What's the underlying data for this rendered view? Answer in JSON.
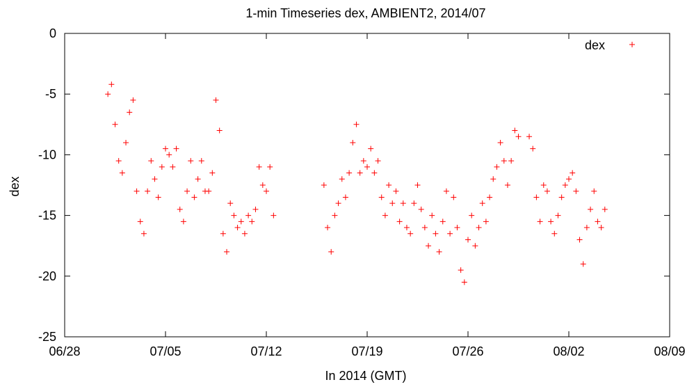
{
  "chart_data": {
    "type": "scatter",
    "title": "1-min Timeseries dex, AMBIENT2, 2014/07",
    "xlabel": "In 2014 (GMT)",
    "ylabel": "dex",
    "xlim": [
      "2014-06-28",
      "2014-08-09"
    ],
    "ylim": [
      -25,
      0
    ],
    "x_ticks": [
      "06/28",
      "07/05",
      "07/12",
      "07/19",
      "07/26",
      "08/02",
      "08/09"
    ],
    "y_ticks": [
      "0",
      "-5",
      "-10",
      "-15",
      "-20",
      "-25"
    ],
    "grid": false,
    "legend": {
      "position": "top-right",
      "entries": [
        "dex"
      ]
    },
    "series": [
      {
        "name": "dex",
        "color": "#ff0000",
        "marker": "plus",
        "points": [
          [
            "2014-07-01 00:00",
            -5.0
          ],
          [
            "2014-07-01 06:00",
            -4.2
          ],
          [
            "2014-07-01 12:00",
            -7.5
          ],
          [
            "2014-07-01 18:00",
            -10.5
          ],
          [
            "2014-07-02 00:00",
            -11.5
          ],
          [
            "2014-07-02 06:00",
            -9.0
          ],
          [
            "2014-07-02 12:00",
            -6.5
          ],
          [
            "2014-07-02 18:00",
            -5.5
          ],
          [
            "2014-07-03 00:00",
            -13.0
          ],
          [
            "2014-07-03 06:00",
            -15.5
          ],
          [
            "2014-07-03 12:00",
            -16.5
          ],
          [
            "2014-07-03 18:00",
            -13.0
          ],
          [
            "2014-07-04 00:00",
            -10.5
          ],
          [
            "2014-07-04 06:00",
            -12.0
          ],
          [
            "2014-07-04 12:00",
            -13.5
          ],
          [
            "2014-07-04 18:00",
            -11.0
          ],
          [
            "2014-07-05 00:00",
            -9.5
          ],
          [
            "2014-07-05 06:00",
            -10.0
          ],
          [
            "2014-07-05 12:00",
            -11.0
          ],
          [
            "2014-07-05 18:00",
            -9.5
          ],
          [
            "2014-07-06 00:00",
            -14.5
          ],
          [
            "2014-07-06 06:00",
            -15.5
          ],
          [
            "2014-07-06 12:00",
            -13.0
          ],
          [
            "2014-07-06 18:00",
            -10.5
          ],
          [
            "2014-07-07 00:00",
            -13.5
          ],
          [
            "2014-07-07 06:00",
            -12.0
          ],
          [
            "2014-07-07 12:00",
            -10.5
          ],
          [
            "2014-07-07 18:00",
            -13.0
          ],
          [
            "2014-07-08 00:00",
            -13.0
          ],
          [
            "2014-07-08 06:00",
            -11.5
          ],
          [
            "2014-07-08 12:00",
            -5.5
          ],
          [
            "2014-07-08 18:00",
            -8.0
          ],
          [
            "2014-07-09 00:00",
            -16.5
          ],
          [
            "2014-07-09 06:00",
            -18.0
          ],
          [
            "2014-07-09 12:00",
            -14.0
          ],
          [
            "2014-07-09 18:00",
            -15.0
          ],
          [
            "2014-07-10 00:00",
            -16.0
          ],
          [
            "2014-07-10 06:00",
            -15.5
          ],
          [
            "2014-07-10 12:00",
            -16.5
          ],
          [
            "2014-07-10 18:00",
            -15.0
          ],
          [
            "2014-07-11 00:00",
            -15.5
          ],
          [
            "2014-07-11 06:00",
            -14.5
          ],
          [
            "2014-07-11 12:00",
            -11.0
          ],
          [
            "2014-07-11 18:00",
            -12.5
          ],
          [
            "2014-07-12 00:00",
            -13.0
          ],
          [
            "2014-07-12 06:00",
            -11.0
          ],
          [
            "2014-07-12 12:00",
            -15.0
          ],
          [
            "2014-07-16 00:00",
            -12.5
          ],
          [
            "2014-07-16 06:00",
            -16.0
          ],
          [
            "2014-07-16 12:00",
            -18.0
          ],
          [
            "2014-07-16 18:00",
            -15.0
          ],
          [
            "2014-07-17 00:00",
            -14.0
          ],
          [
            "2014-07-17 06:00",
            -12.0
          ],
          [
            "2014-07-17 12:00",
            -13.5
          ],
          [
            "2014-07-17 18:00",
            -11.5
          ],
          [
            "2014-07-18 00:00",
            -9.0
          ],
          [
            "2014-07-18 06:00",
            -7.5
          ],
          [
            "2014-07-18 12:00",
            -11.5
          ],
          [
            "2014-07-18 18:00",
            -10.5
          ],
          [
            "2014-07-19 00:00",
            -11.0
          ],
          [
            "2014-07-19 06:00",
            -9.5
          ],
          [
            "2014-07-19 12:00",
            -11.5
          ],
          [
            "2014-07-19 18:00",
            -10.5
          ],
          [
            "2014-07-20 00:00",
            -13.5
          ],
          [
            "2014-07-20 06:00",
            -15.0
          ],
          [
            "2014-07-20 12:00",
            -12.5
          ],
          [
            "2014-07-20 18:00",
            -14.0
          ],
          [
            "2014-07-21 00:00",
            -13.0
          ],
          [
            "2014-07-21 06:00",
            -15.5
          ],
          [
            "2014-07-21 12:00",
            -14.0
          ],
          [
            "2014-07-21 18:00",
            -16.0
          ],
          [
            "2014-07-22 00:00",
            -16.5
          ],
          [
            "2014-07-22 06:00",
            -14.0
          ],
          [
            "2014-07-22 12:00",
            -12.5
          ],
          [
            "2014-07-22 18:00",
            -14.5
          ],
          [
            "2014-07-23 00:00",
            -16.0
          ],
          [
            "2014-07-23 06:00",
            -17.5
          ],
          [
            "2014-07-23 12:00",
            -15.0
          ],
          [
            "2014-07-23 18:00",
            -16.5
          ],
          [
            "2014-07-24 00:00",
            -18.0
          ],
          [
            "2014-07-24 06:00",
            -15.5
          ],
          [
            "2014-07-24 12:00",
            -13.0
          ],
          [
            "2014-07-24 18:00",
            -16.5
          ],
          [
            "2014-07-25 00:00",
            -13.5
          ],
          [
            "2014-07-25 06:00",
            -16.0
          ],
          [
            "2014-07-25 12:00",
            -19.5
          ],
          [
            "2014-07-25 18:00",
            -20.5
          ],
          [
            "2014-07-26 00:00",
            -17.0
          ],
          [
            "2014-07-26 06:00",
            -15.0
          ],
          [
            "2014-07-26 12:00",
            -17.5
          ],
          [
            "2014-07-26 18:00",
            -16.0
          ],
          [
            "2014-07-27 00:00",
            -14.0
          ],
          [
            "2014-07-27 06:00",
            -15.5
          ],
          [
            "2014-07-27 12:00",
            -13.5
          ],
          [
            "2014-07-27 18:00",
            -12.0
          ],
          [
            "2014-07-28 00:00",
            -11.0
          ],
          [
            "2014-07-28 06:00",
            -9.0
          ],
          [
            "2014-07-28 12:00",
            -10.5
          ],
          [
            "2014-07-28 18:00",
            -12.5
          ],
          [
            "2014-07-29 00:00",
            -10.5
          ],
          [
            "2014-07-29 06:00",
            -8.0
          ],
          [
            "2014-07-29 12:00",
            -8.5
          ],
          [
            "2014-07-30 06:00",
            -8.5
          ],
          [
            "2014-07-30 12:00",
            -9.5
          ],
          [
            "2014-07-30 18:00",
            -13.5
          ],
          [
            "2014-07-31 00:00",
            -15.5
          ],
          [
            "2014-07-31 06:00",
            -12.5
          ],
          [
            "2014-07-31 12:00",
            -13.0
          ],
          [
            "2014-07-31 18:00",
            -15.5
          ],
          [
            "2014-08-01 00:00",
            -16.5
          ],
          [
            "2014-08-01 06:00",
            -15.0
          ],
          [
            "2014-08-01 12:00",
            -13.5
          ],
          [
            "2014-08-01 18:00",
            -12.5
          ],
          [
            "2014-08-02 00:00",
            -12.0
          ],
          [
            "2014-08-02 06:00",
            -11.5
          ],
          [
            "2014-08-02 12:00",
            -13.0
          ],
          [
            "2014-08-02 18:00",
            -17.0
          ],
          [
            "2014-08-03 00:00",
            -19.0
          ],
          [
            "2014-08-03 06:00",
            -16.0
          ],
          [
            "2014-08-03 12:00",
            -14.5
          ],
          [
            "2014-08-03 18:00",
            -13.0
          ],
          [
            "2014-08-04 00:00",
            -15.5
          ],
          [
            "2014-08-04 06:00",
            -16.0
          ],
          [
            "2014-08-04 12:00",
            -14.5
          ]
        ]
      }
    ]
  }
}
